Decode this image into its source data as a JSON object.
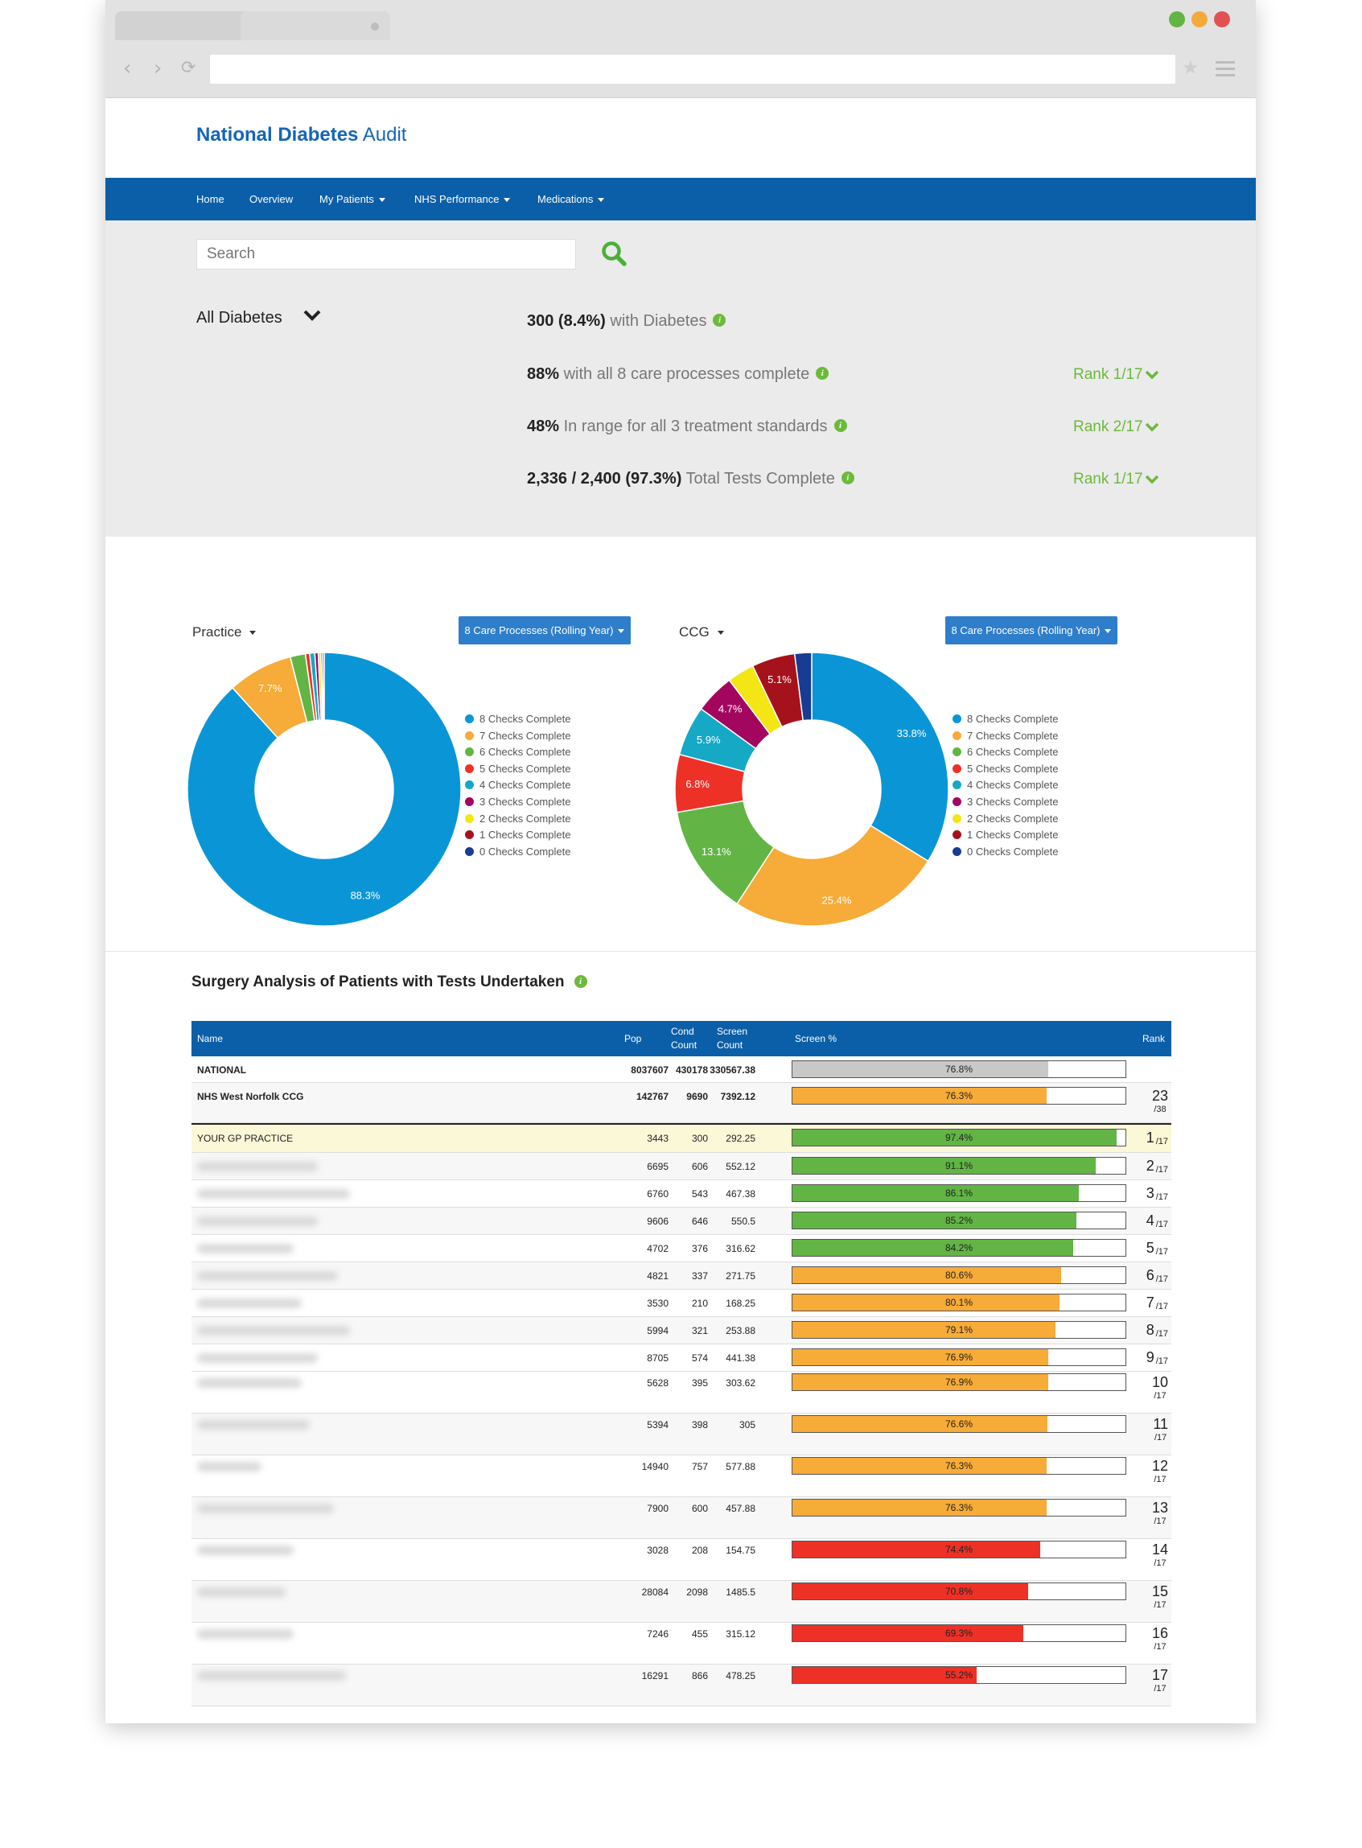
{
  "brand": {
    "bold": "National Diabetes",
    "light": " Audit",
    "color": "#1565b8"
  },
  "nav": [
    {
      "label": "Home",
      "caret": false
    },
    {
      "label": "Overview",
      "caret": false
    },
    {
      "label": "My Patients",
      "caret": true
    },
    {
      "label": "NHS Performance",
      "caret": true
    },
    {
      "label": "Medications",
      "caret": true
    }
  ],
  "search": {
    "placeholder": "Search"
  },
  "filter": {
    "label": "All Diabetes"
  },
  "summary": [
    {
      "value": "300 (8.4%)",
      "text": " with Diabetes",
      "rank": ""
    },
    {
      "value": "88%",
      "text": " with all 8 care processes complete",
      "rank": "Rank 1/17"
    },
    {
      "value": "48%",
      "text": " In range for all 3 treatment standards",
      "rank": "Rank 2/17"
    },
    {
      "value": "2,336 / 2,400 (97.3%)",
      "text": " Total Tests Complete",
      "rank": "Rank 1/17"
    }
  ],
  "chart_data": [
    {
      "type": "pie",
      "title": "",
      "selector": "Practice",
      "button": "8 Care Processes (Rolling Year)",
      "categories": [
        "8 Checks Complete",
        "7 Checks Complete",
        "6 Checks Complete",
        "5 Checks Complete",
        "4 Checks Complete",
        "3 Checks Complete",
        "2 Checks Complete",
        "1 Checks Complete",
        "0 Checks Complete"
      ],
      "values": [
        88.3,
        7.7,
        1.8,
        0.5,
        0.6,
        0.4,
        0.3,
        0.2,
        0.2
      ],
      "data_labels": [
        "88.3%",
        "7.7%",
        "",
        "",
        "",
        "",
        "",
        "",
        ""
      ],
      "colors": [
        "#0a96d6",
        "#f7ab38",
        "#62b545",
        "#ee3127",
        "#15a9c6",
        "#a2065f",
        "#f4e515",
        "#a6121b",
        "#173c92"
      ],
      "legend": "right"
    },
    {
      "type": "pie",
      "title": "",
      "selector": "CCG",
      "button": "8 Care Processes (Rolling Year)",
      "categories": [
        "8 Checks Complete",
        "7 Checks Complete",
        "6 Checks Complete",
        "5 Checks Complete",
        "4 Checks Complete",
        "3 Checks Complete",
        "2 Checks Complete",
        "1 Checks Complete",
        "0 Checks Complete"
      ],
      "values": [
        33.8,
        25.4,
        13.1,
        6.8,
        5.9,
        4.7,
        3.2,
        5.1,
        2.0
      ],
      "data_labels": [
        "33.8%",
        "25.4%",
        "13.1%",
        "6.8%",
        "5.9%",
        "4.7%",
        "",
        "5.1%",
        ""
      ],
      "colors": [
        "#0a96d6",
        "#f7ab38",
        "#62b545",
        "#ee3127",
        "#15a9c6",
        "#a2065f",
        "#f4e515",
        "#a6121b",
        "#173c92"
      ],
      "legend": "right"
    }
  ],
  "table": {
    "title": "Surgery Analysis of Patients with Tests Undertaken",
    "headers": {
      "name": "Name",
      "pop": "Pop",
      "cond1": "Cond",
      "cond2": "Count",
      "scr1": "Screen",
      "scr2": "Count",
      "pct": "Screen %",
      "rank": "Rank"
    },
    "rows": [
      {
        "name": "NATIONAL",
        "pop": "8037607",
        "cond": "430178",
        "screen": "330567.38",
        "pct": "76.8%",
        "val": 76.8,
        "color": "#c8c8c8",
        "rank": "",
        "den": "",
        "kind": "national"
      },
      {
        "name": "NHS West Norfolk CCG",
        "pop": "142767",
        "cond": "9690",
        "screen": "7392.12",
        "pct": "76.3%",
        "val": 76.3,
        "color": "#f7ab38",
        "rank": "23",
        "den": "/38",
        "kind": "ccg"
      },
      {
        "name": "YOUR GP PRACTICE",
        "pop": "3443",
        "cond": "300",
        "screen": "292.25",
        "pct": "97.4%",
        "val": 97.4,
        "color": "#62b545",
        "rank": "1",
        "den": "/17",
        "kind": "gp"
      },
      {
        "name": "",
        "pop": "6695",
        "cond": "606",
        "screen": "552.12",
        "pct": "91.1%",
        "val": 91.1,
        "color": "#62b545",
        "rank": "2",
        "den": "/17",
        "kind": "s"
      },
      {
        "name": "",
        "pop": "6760",
        "cond": "543",
        "screen": "467.38",
        "pct": "86.1%",
        "val": 86.1,
        "color": "#62b545",
        "rank": "3",
        "den": "/17",
        "kind": "s"
      },
      {
        "name": "",
        "pop": "9606",
        "cond": "646",
        "screen": "550.5",
        "pct": "85.2%",
        "val": 85.2,
        "color": "#62b545",
        "rank": "4",
        "den": "/17",
        "kind": "s"
      },
      {
        "name": "",
        "pop": "4702",
        "cond": "376",
        "screen": "316.62",
        "pct": "84.2%",
        "val": 84.2,
        "color": "#62b545",
        "rank": "5",
        "den": "/17",
        "kind": "s"
      },
      {
        "name": "",
        "pop": "4821",
        "cond": "337",
        "screen": "271.75",
        "pct": "80.6%",
        "val": 80.6,
        "color": "#f7ab38",
        "rank": "6",
        "den": "/17",
        "kind": "s"
      },
      {
        "name": "",
        "pop": "3530",
        "cond": "210",
        "screen": "168.25",
        "pct": "80.1%",
        "val": 80.1,
        "color": "#f7ab38",
        "rank": "7",
        "den": "/17",
        "kind": "s"
      },
      {
        "name": "",
        "pop": "5994",
        "cond": "321",
        "screen": "253.88",
        "pct": "79.1%",
        "val": 79.1,
        "color": "#f7ab38",
        "rank": "8",
        "den": "/17",
        "kind": "s"
      },
      {
        "name": "",
        "pop": "8705",
        "cond": "574",
        "screen": "441.38",
        "pct": "76.9%",
        "val": 76.9,
        "color": "#f7ab38",
        "rank": "9",
        "den": "/17",
        "kind": "s"
      },
      {
        "name": "",
        "pop": "5628",
        "cond": "395",
        "screen": "303.62",
        "pct": "76.9%",
        "val": 76.9,
        "color": "#f7ab38",
        "rank": "10",
        "den": "/17",
        "kind": "t"
      },
      {
        "name": "",
        "pop": "5394",
        "cond": "398",
        "screen": "305",
        "pct": "76.6%",
        "val": 76.6,
        "color": "#f7ab38",
        "rank": "11",
        "den": "/17",
        "kind": "t"
      },
      {
        "name": "",
        "pop": "14940",
        "cond": "757",
        "screen": "577.88",
        "pct": "76.3%",
        "val": 76.3,
        "color": "#f7ab38",
        "rank": "12",
        "den": "/17",
        "kind": "t"
      },
      {
        "name": "",
        "pop": "7900",
        "cond": "600",
        "screen": "457.88",
        "pct": "76.3%",
        "val": 76.3,
        "color": "#f7ab38",
        "rank": "13",
        "den": "/17",
        "kind": "t"
      },
      {
        "name": "",
        "pop": "3028",
        "cond": "208",
        "screen": "154.75",
        "pct": "74.4%",
        "val": 74.4,
        "color": "#ee3127",
        "rank": "14",
        "den": "/17",
        "kind": "t"
      },
      {
        "name": "",
        "pop": "28084",
        "cond": "2098",
        "screen": "1485.5",
        "pct": "70.8%",
        "val": 70.8,
        "color": "#ee3127",
        "rank": "15",
        "den": "/17",
        "kind": "t"
      },
      {
        "name": "",
        "pop": "7246",
        "cond": "455",
        "screen": "315.12",
        "pct": "69.3%",
        "val": 69.3,
        "color": "#ee3127",
        "rank": "16",
        "den": "/17",
        "kind": "t"
      },
      {
        "name": "",
        "pop": "16291",
        "cond": "866",
        "screen": "478.25",
        "pct": "55.2%",
        "val": 55.2,
        "color": "#ee3127",
        "rank": "17",
        "den": "/17",
        "kind": "t"
      }
    ]
  },
  "icons": {
    "search": "search-icon",
    "info": "info-icon",
    "chevron": "chevron-down-icon"
  }
}
